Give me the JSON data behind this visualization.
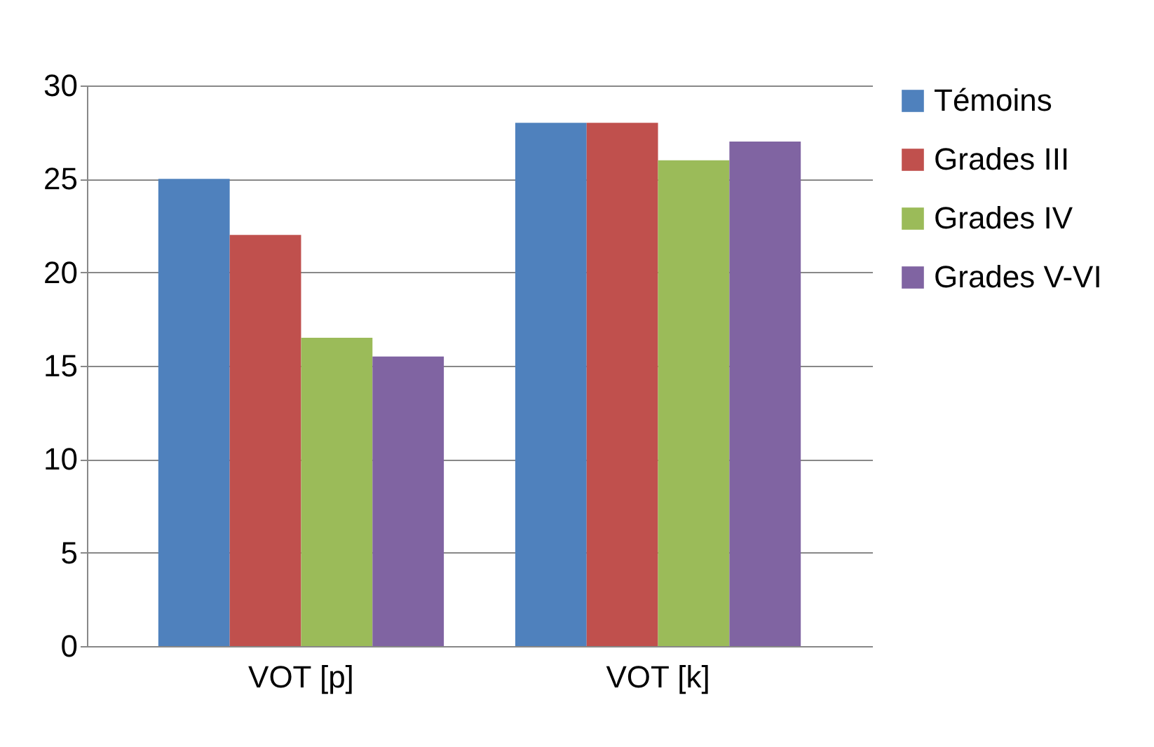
{
  "chart_data": {
    "type": "bar",
    "categories": [
      "VOT [p]",
      "VOT [k]"
    ],
    "series": [
      {
        "name": "Témoins",
        "color": "#4f81bd",
        "values": [
          25,
          28
        ]
      },
      {
        "name": "Grades III",
        "color": "#c0504d",
        "values": [
          22,
          28
        ]
      },
      {
        "name": "Grades IV",
        "color": "#9bbb59",
        "values": [
          16.5,
          26
        ]
      },
      {
        "name": "Grades V-VI",
        "color": "#8064a2",
        "values": [
          15.5,
          27
        ]
      }
    ],
    "ylim": [
      0,
      30
    ],
    "yticks": [
      0,
      5,
      10,
      15,
      20,
      25,
      30
    ],
    "grid": "y",
    "legend": "right"
  }
}
